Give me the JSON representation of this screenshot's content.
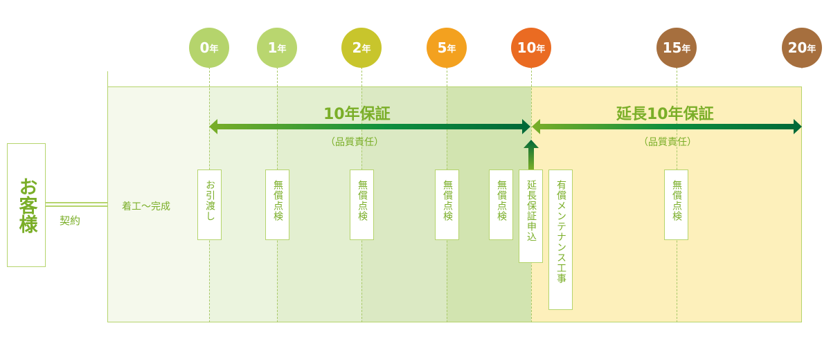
{
  "customer": {
    "label": "お客様",
    "contract": "契約"
  },
  "construction": "着工〜完成",
  "milestones": [
    {
      "label": "0",
      "unit": "年",
      "color": "#b5d46c"
    },
    {
      "label": "1",
      "unit": "年",
      "color": "#b9d66f"
    },
    {
      "label": "2",
      "unit": "年",
      "color": "#c8c52c"
    },
    {
      "label": "5",
      "unit": "年",
      "color": "#f3a11f"
    },
    {
      "label": "10",
      "unit": "年",
      "color": "#ea6b22"
    },
    {
      "label": "15",
      "unit": "年",
      "color": "#a66f3e"
    },
    {
      "label": "20",
      "unit": "年",
      "color": "#a66f3e"
    }
  ],
  "warranty": {
    "title": "10年保証",
    "sub": "（品質責任）"
  },
  "extended": {
    "title": "延長10年保証",
    "sub": "（品質責任）"
  },
  "events": [
    "お引渡し",
    "無償点検",
    "無償点検",
    "無償点検",
    "無償点検",
    "延長保証申込",
    "有償メンテナンス工事",
    "無償点検"
  ],
  "colors": {
    "green": "#7aae28",
    "dark_green": "#006838",
    "yellow_zone": "#fdf0bb"
  }
}
